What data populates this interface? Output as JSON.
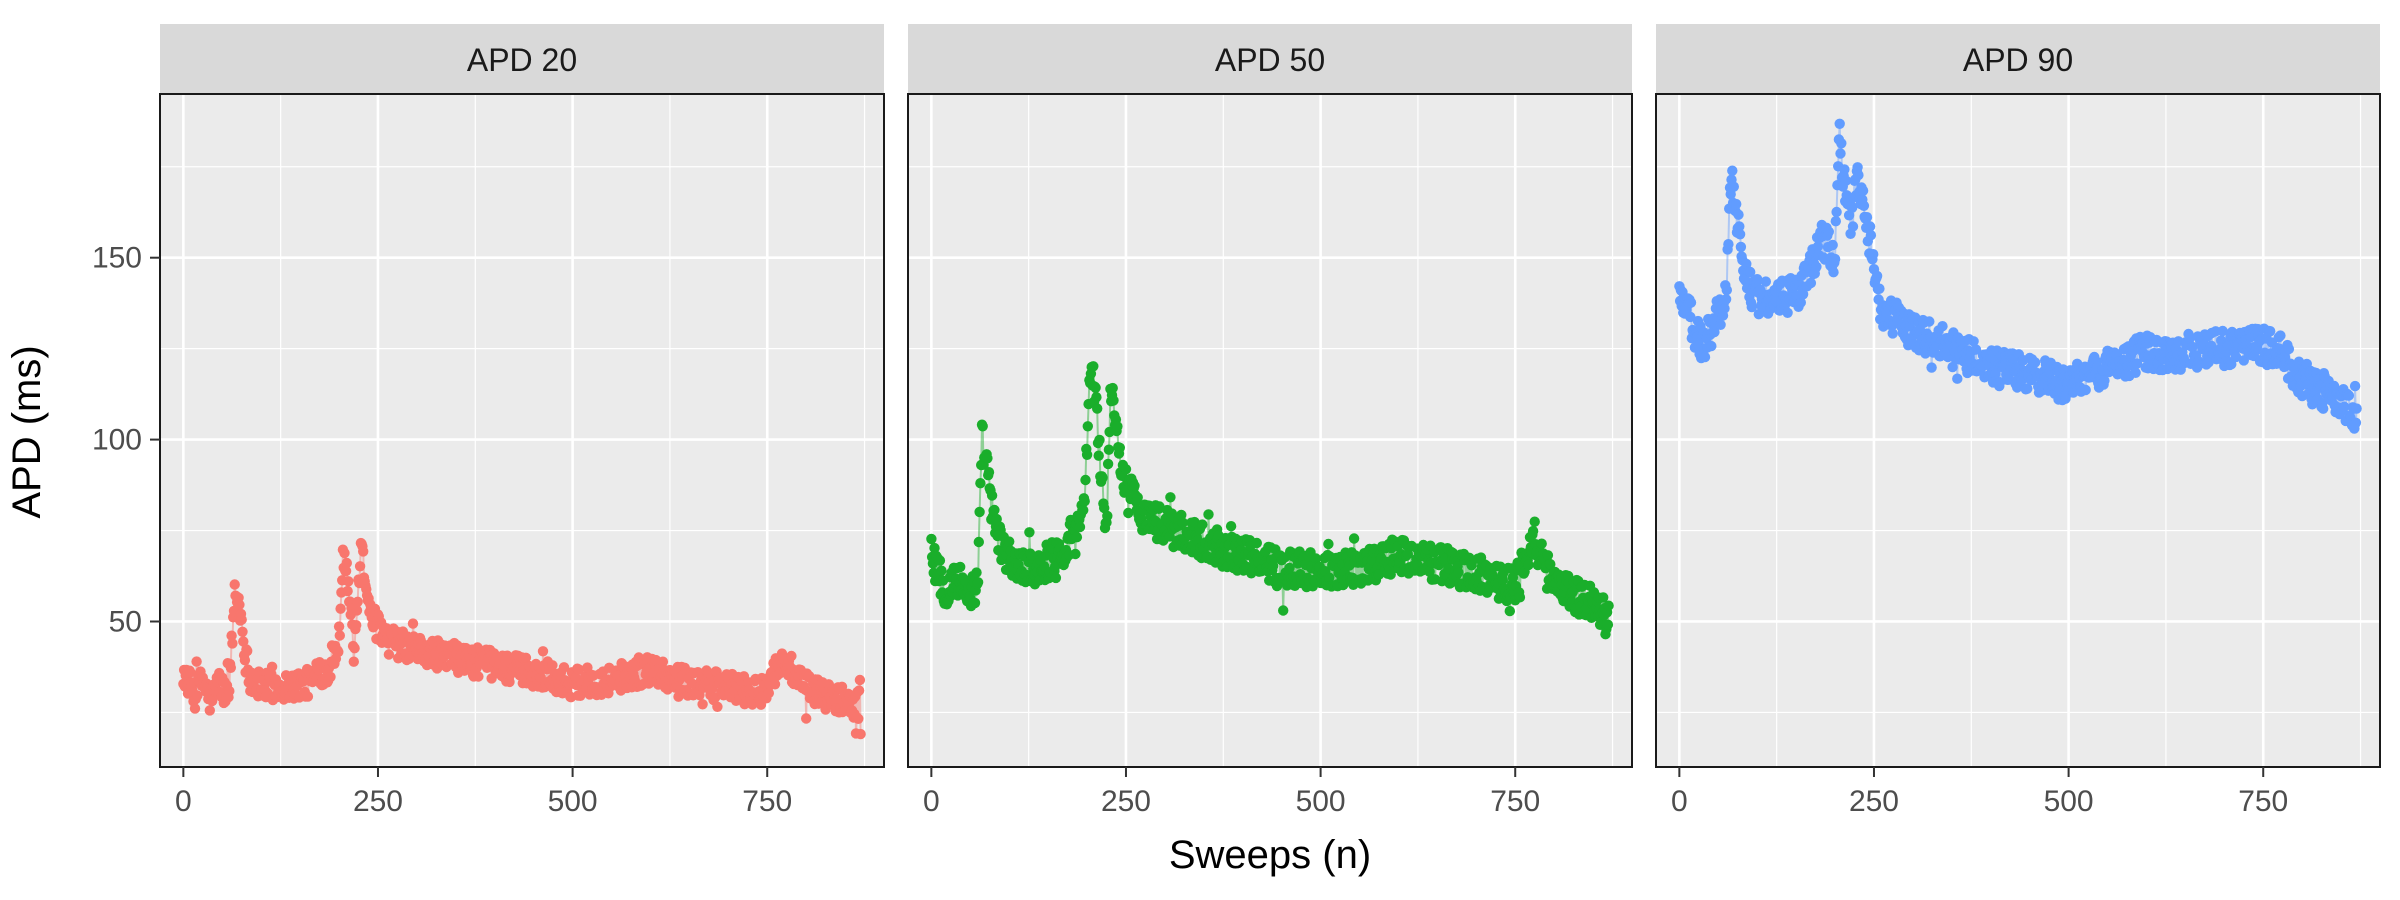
{
  "chart_data": {
    "type": "scatter",
    "xlabel": "Sweeps (n)",
    "ylabel": "APD (ms)",
    "xlim": [
      -30,
      900
    ],
    "ylim": [
      10,
      195
    ],
    "x_ticks": [
      0,
      250,
      500,
      750
    ],
    "y_ticks": [
      50,
      100,
      150
    ],
    "grid": true,
    "panels": [
      {
        "label": "APD 20",
        "color": "#F8766D",
        "x_max": 870,
        "keypoints": [
          [
            0,
            36
          ],
          [
            15,
            30
          ],
          [
            25,
            34
          ],
          [
            35,
            28
          ],
          [
            45,
            33
          ],
          [
            55,
            30
          ],
          [
            60,
            35
          ],
          [
            66,
            58
          ],
          [
            72,
            55
          ],
          [
            80,
            40
          ],
          [
            90,
            33
          ],
          [
            100,
            32
          ],
          [
            130,
            32
          ],
          [
            160,
            33
          ],
          [
            190,
            38
          ],
          [
            200,
            45
          ],
          [
            205,
            70
          ],
          [
            212,
            60
          ],
          [
            220,
            40
          ],
          [
            228,
            72
          ],
          [
            235,
            60
          ],
          [
            245,
            50
          ],
          [
            260,
            45
          ],
          [
            300,
            42
          ],
          [
            350,
            40
          ],
          [
            400,
            38
          ],
          [
            450,
            36
          ],
          [
            500,
            33
          ],
          [
            550,
            34
          ],
          [
            600,
            37
          ],
          [
            650,
            33
          ],
          [
            700,
            32
          ],
          [
            740,
            30
          ],
          [
            765,
            38
          ],
          [
            775,
            39
          ],
          [
            790,
            33
          ],
          [
            820,
            30
          ],
          [
            850,
            28
          ],
          [
            870,
            27
          ]
        ],
        "noise": 4
      },
      {
        "label": "APD 50",
        "color": "#1AAE2B",
        "x_max": 870,
        "keypoints": [
          [
            0,
            68
          ],
          [
            10,
            62
          ],
          [
            20,
            58
          ],
          [
            30,
            62
          ],
          [
            40,
            60
          ],
          [
            50,
            58
          ],
          [
            60,
            60
          ],
          [
            65,
            100
          ],
          [
            70,
            95
          ],
          [
            78,
            80
          ],
          [
            90,
            70
          ],
          [
            110,
            65
          ],
          [
            140,
            65
          ],
          [
            170,
            70
          ],
          [
            195,
            80
          ],
          [
            205,
            120
          ],
          [
            212,
            110
          ],
          [
            218,
            90
          ],
          [
            225,
            75
          ],
          [
            230,
            115
          ],
          [
            238,
            100
          ],
          [
            250,
            88
          ],
          [
            270,
            80
          ],
          [
            300,
            76
          ],
          [
            350,
            72
          ],
          [
            400,
            68
          ],
          [
            450,
            65
          ],
          [
            500,
            64
          ],
          [
            550,
            65
          ],
          [
            600,
            68
          ],
          [
            650,
            66
          ],
          [
            700,
            63
          ],
          [
            750,
            60
          ],
          [
            770,
            72
          ],
          [
            790,
            64
          ],
          [
            820,
            58
          ],
          [
            850,
            55
          ],
          [
            870,
            50
          ]
        ],
        "noise": 5
      },
      {
        "label": "APD 90",
        "color": "#619CFF",
        "x_max": 870,
        "keypoints": [
          [
            0,
            140
          ],
          [
            10,
            136
          ],
          [
            20,
            130
          ],
          [
            30,
            125
          ],
          [
            40,
            130
          ],
          [
            50,
            135
          ],
          [
            60,
            140
          ],
          [
            66,
            172
          ],
          [
            72,
            165
          ],
          [
            80,
            150
          ],
          [
            95,
            140
          ],
          [
            120,
            138
          ],
          [
            150,
            140
          ],
          [
            170,
            148
          ],
          [
            185,
            155
          ],
          [
            200,
            150
          ],
          [
            205,
            185
          ],
          [
            212,
            170
          ],
          [
            220,
            158
          ],
          [
            228,
            172
          ],
          [
            235,
            165
          ],
          [
            245,
            155
          ],
          [
            260,
            135
          ],
          [
            300,
            130
          ],
          [
            350,
            125
          ],
          [
            400,
            120
          ],
          [
            450,
            118
          ],
          [
            500,
            115
          ],
          [
            550,
            120
          ],
          [
            600,
            124
          ],
          [
            650,
            124
          ],
          [
            700,
            125
          ],
          [
            740,
            126
          ],
          [
            770,
            125
          ],
          [
            790,
            118
          ],
          [
            820,
            114
          ],
          [
            850,
            110
          ],
          [
            870,
            105
          ]
        ],
        "noise": 5
      }
    ]
  }
}
